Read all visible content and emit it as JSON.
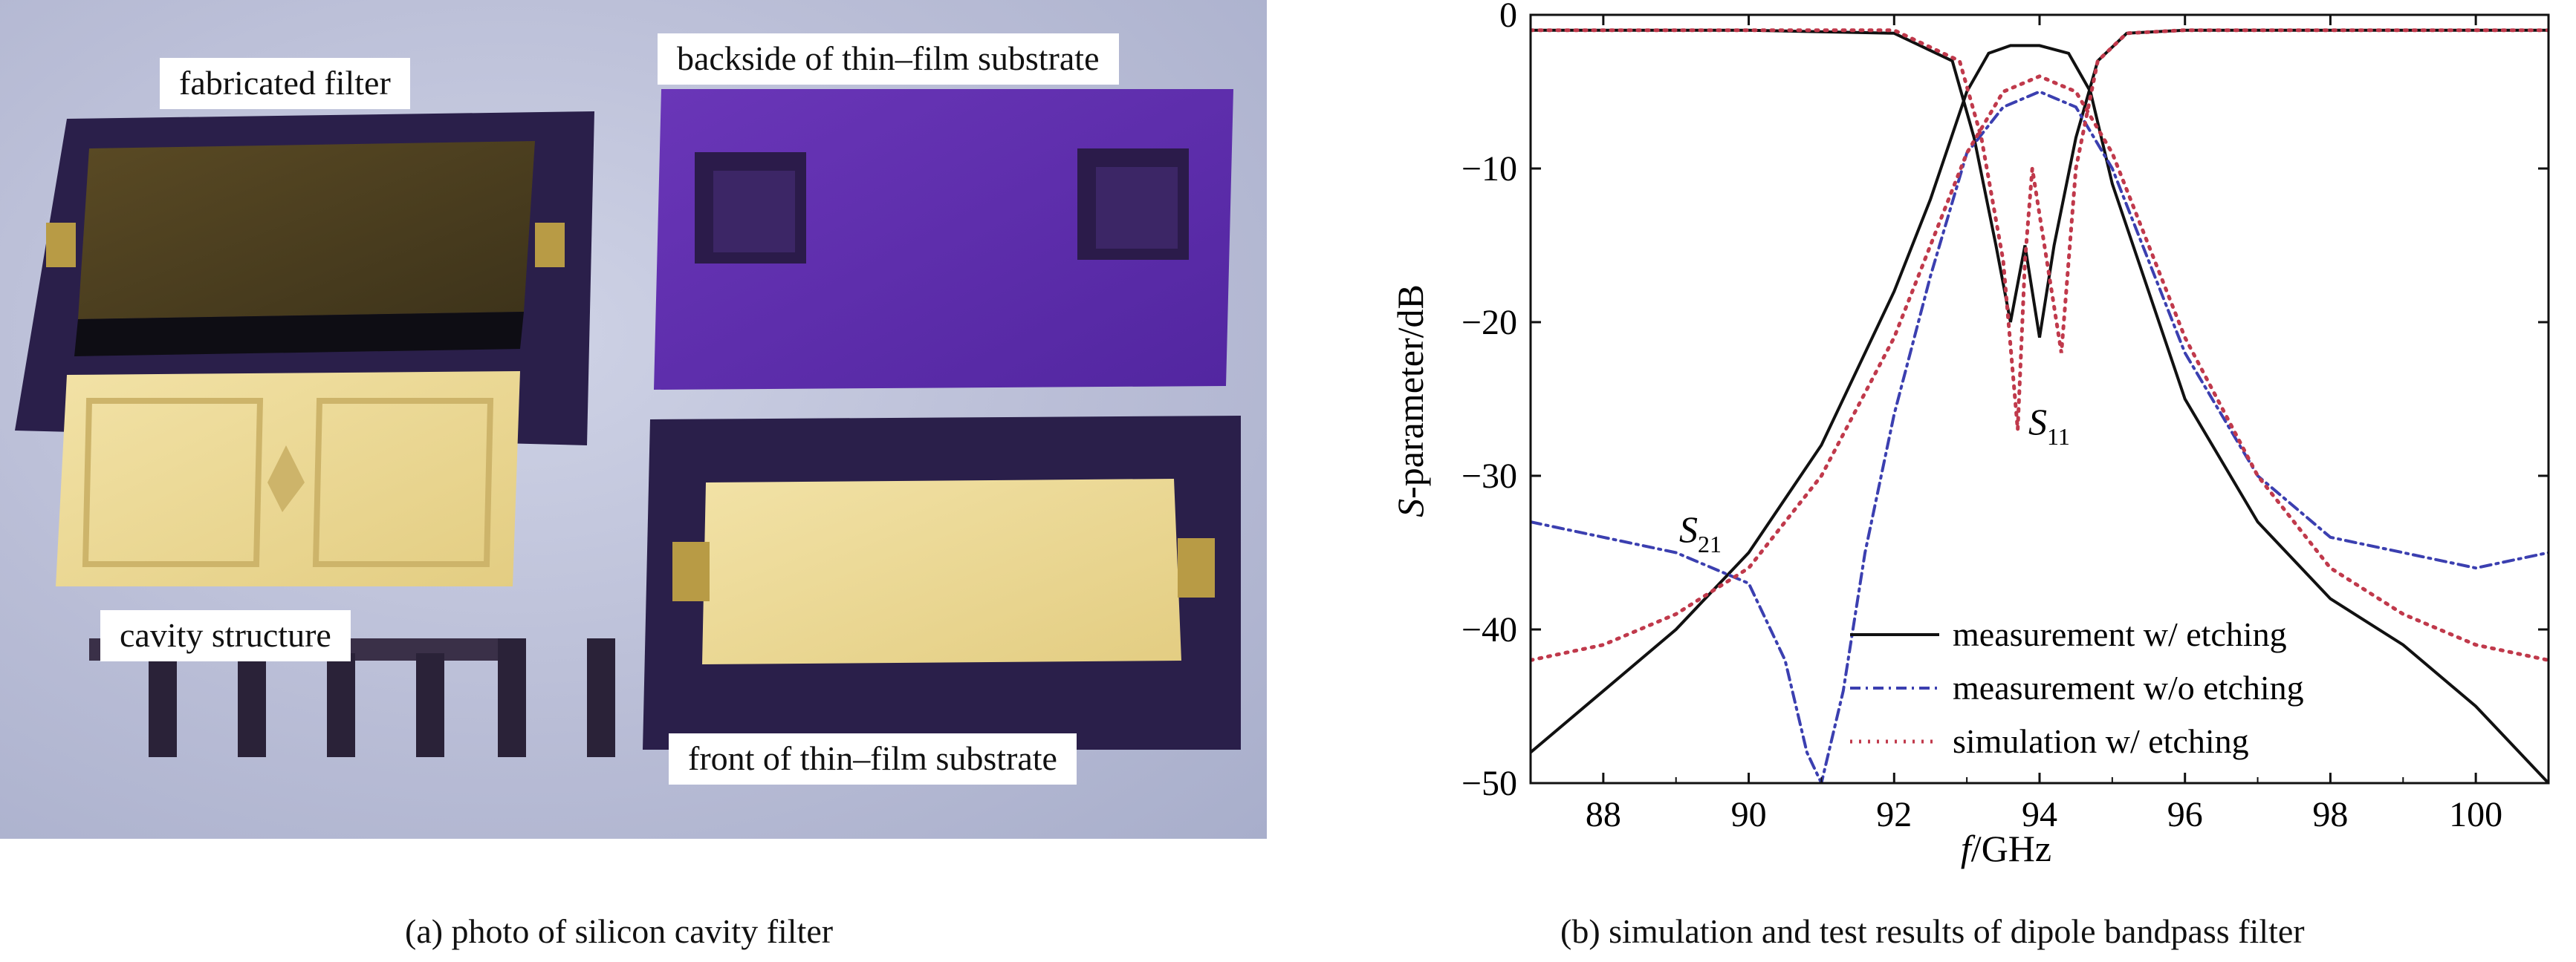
{
  "panel_a": {
    "labels": {
      "fabricated_filter": "fabricated filter",
      "backside": "backside of thin–film substrate",
      "cavity_structure": "cavity structure",
      "front": "front of thin–film substrate"
    },
    "caption": "(a) photo of silicon cavity filter"
  },
  "panel_b": {
    "caption": "(b) simulation and test results of dipole bandpass filter",
    "annotations": {
      "s11_main": "S",
      "s11_sub": "11",
      "s21_main": "S",
      "s21_sub": "21"
    },
    "ylabel": {
      "italic": "S",
      "rest": "-parameter/dB"
    },
    "xlabel": {
      "italic": "f",
      "rest": "/GHz"
    }
  },
  "colors": {
    "measurement_with_etching": "#111111",
    "measurement_without_etching": "#3b3fb0",
    "simulation_with_etching": "#c0394b"
  },
  "chart_data": {
    "type": "line",
    "x_unit": "GHz",
    "y_unit": "dB",
    "xlim": [
      87,
      101
    ],
    "ylim": [
      -50,
      0
    ],
    "xticks": [
      88,
      90,
      92,
      94,
      96,
      98,
      100
    ],
    "yticks": [
      0,
      -10,
      -20,
      -30,
      -40,
      -50
    ],
    "legend_position": "bottom-right",
    "grid": false,
    "series": [
      {
        "name": "measurement w/ etching",
        "style": "solid",
        "color": "#111111",
        "S21": {
          "x": [
            87,
            88,
            89,
            90,
            91,
            92,
            92.5,
            93,
            93.3,
            93.6,
            94,
            94.4,
            94.7,
            95,
            95.5,
            96,
            97,
            98,
            99,
            100,
            101
          ],
          "y": [
            -48,
            -44,
            -40,
            -35,
            -28,
            -18,
            -12,
            -5,
            -2.5,
            -2,
            -2,
            -2.5,
            -5,
            -11,
            -18,
            -25,
            -33,
            -38,
            -41,
            -45,
            -50
          ]
        },
        "S11": {
          "x": [
            87,
            90,
            92,
            92.8,
            93.1,
            93.4,
            93.6,
            93.8,
            94.0,
            94.2,
            94.5,
            94.8,
            95.2,
            96,
            98,
            101
          ],
          "y": [
            -1,
            -1,
            -1.2,
            -3,
            -8,
            -15,
            -20,
            -15,
            -21,
            -15,
            -8,
            -3,
            -1.2,
            -1,
            -1,
            -1
          ]
        }
      },
      {
        "name": "measurement w/o etching",
        "style": "dash-dot",
        "color": "#3b3fb0",
        "S21": {
          "x": [
            87,
            88,
            89,
            90,
            90.5,
            90.8,
            91,
            91.3,
            91.6,
            92,
            92.5,
            93,
            93.5,
            94,
            94.5,
            95,
            96,
            97,
            98,
            99,
            100,
            101
          ],
          "y": [
            -33,
            -34,
            -35,
            -37,
            -42,
            -48,
            -50,
            -44,
            -35,
            -26,
            -17,
            -9,
            -6,
            -5,
            -6,
            -10,
            -22,
            -30,
            -34,
            -35,
            -36,
            -35
          ]
        }
      },
      {
        "name": "simulation w/ etching",
        "style": "dotted",
        "color": "#c0394b",
        "S21": {
          "x": [
            87,
            88,
            89,
            90,
            91,
            92,
            92.5,
            93,
            93.5,
            94,
            94.5,
            95,
            95.5,
            96,
            97,
            98,
            99,
            100,
            101
          ],
          "y": [
            -42,
            -41,
            -39,
            -36,
            -30,
            -21,
            -15,
            -9,
            -5,
            -4,
            -5,
            -9,
            -15,
            -21,
            -30,
            -36,
            -39,
            -41,
            -42
          ]
        },
        "S11": {
          "x": [
            87,
            92,
            92.9,
            93.2,
            93.5,
            93.7,
            93.8,
            93.9,
            94.1,
            94.3,
            94.5,
            94.8,
            95.2,
            96,
            101
          ],
          "y": [
            -1,
            -1,
            -3,
            -8,
            -16,
            -27,
            -16,
            -10,
            -16,
            -22,
            -10,
            -3,
            -1.2,
            -1,
            -1
          ]
        }
      }
    ]
  }
}
